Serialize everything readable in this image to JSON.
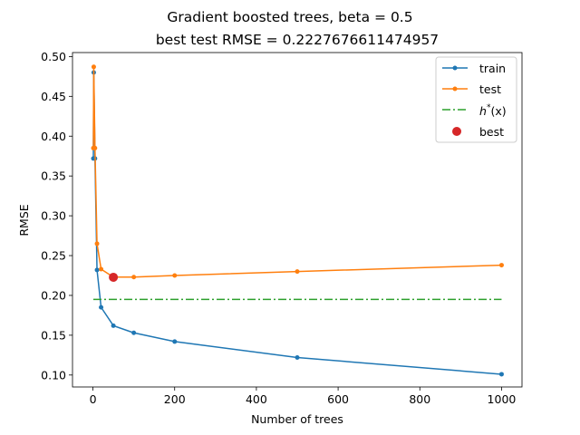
{
  "chart_data": {
    "type": "line",
    "title": "Gradient boosted trees, beta = 0.5",
    "subtitle": "best test RMSE = 0.2227676611474957",
    "xlabel": "Number of trees",
    "ylabel": "RMSE",
    "xlim": [
      -50,
      1050
    ],
    "ylim": [
      0.085,
      0.505
    ],
    "xticks": [
      0,
      200,
      400,
      600,
      800,
      1000
    ],
    "xtick_labels": [
      "0",
      "200",
      "400",
      "600",
      "800",
      "1000"
    ],
    "yticks": [
      0.1,
      0.15,
      0.2,
      0.25,
      0.3,
      0.35,
      0.4,
      0.45,
      0.5
    ],
    "ytick_labels": [
      "0.10",
      "0.15",
      "0.20",
      "0.25",
      "0.30",
      "0.35",
      "0.40",
      "0.45",
      "0.50"
    ],
    "grid": false,
    "legend_position": "top-right",
    "series": [
      {
        "name": "train",
        "color": "#1f77b4",
        "style": "line-dot",
        "x": [
          1,
          2,
          5,
          10,
          20,
          50,
          100,
          200,
          500,
          1000
        ],
        "y": [
          0.372,
          0.48,
          0.372,
          0.232,
          0.185,
          0.162,
          0.153,
          0.142,
          0.122,
          0.101
        ]
      },
      {
        "name": "test",
        "color": "#ff7f0e",
        "style": "line-dot",
        "x": [
          1,
          2,
          5,
          10,
          20,
          50,
          100,
          200,
          500,
          1000
        ],
        "y": [
          0.385,
          0.487,
          0.385,
          0.265,
          0.233,
          0.223,
          0.223,
          0.225,
          0.23,
          0.238
        ]
      },
      {
        "name": "$h^*(x)$",
        "label_main": "h",
        "label_sup": "*",
        "label_rest": "(x)",
        "color": "#2ca02c",
        "style": "dashdot",
        "x": [
          1,
          1000
        ],
        "y": [
          0.195,
          0.195
        ]
      },
      {
        "name": "best",
        "color": "#d62728",
        "style": "marker",
        "x": [
          50
        ],
        "y": [
          0.2227676611474957
        ]
      }
    ]
  }
}
